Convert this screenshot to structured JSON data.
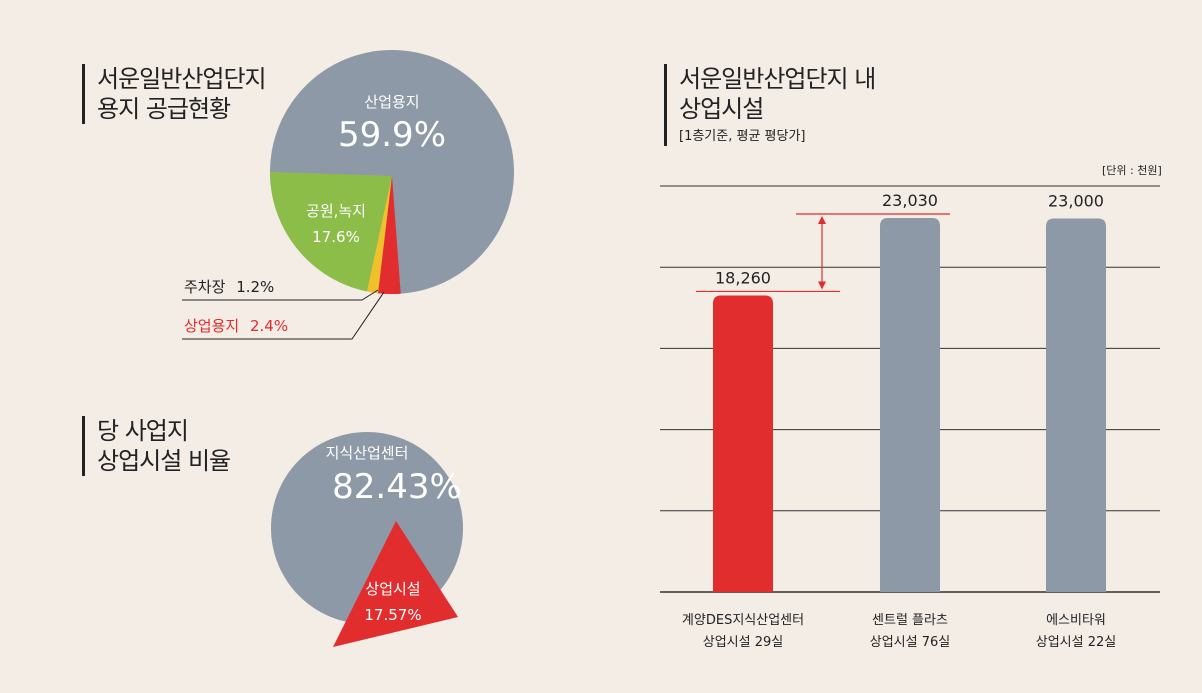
{
  "land_supply": {
    "title_line1": "서운일반산업단지",
    "title_line2": "용지 공급현황"
  },
  "facility_ratio": {
    "title_line1": "당 사업지",
    "title_line2": "상업시설 비율"
  },
  "price_compare": {
    "title_line1": "서운일반산업단지 내",
    "title_line2": "상업시설",
    "subtitle": "[1층기준, 평균 평당가]",
    "unit": "[단위 : 천원]"
  },
  "colors": {
    "gray": "#8d99a6",
    "green": "#8cbd49",
    "yellow": "#f0c12a",
    "red": "#e22d2e",
    "background": "#f3ede6"
  },
  "chart_data": [
    {
      "type": "pie",
      "slices": [
        {
          "label": "산업용지",
          "value": 59.9,
          "display": "59.9%"
        },
        {
          "label": "공원,녹지",
          "value": 17.6,
          "display": "17.6%"
        },
        {
          "label": "주차장",
          "value": 1.2,
          "display": "1.2%"
        },
        {
          "label": "상업용지",
          "value": 2.4,
          "display": "2.4%"
        }
      ]
    },
    {
      "type": "pie",
      "slices": [
        {
          "label": "지식산업센터",
          "value": 82.43,
          "display": "82.43%"
        },
        {
          "label": "상업시설",
          "value": 17.57,
          "display": "17.57%"
        }
      ]
    },
    {
      "type": "bar",
      "categories": [
        {
          "line1": "계양DES지식산업센터",
          "line2": "상업시설 29실"
        },
        {
          "line1": "센트럴 플라츠",
          "line2": "상업시설 76실"
        },
        {
          "line1": "에스비타워",
          "line2": "상업시설 22실"
        }
      ],
      "values": [
        18260,
        23030,
        23000
      ],
      "value_labels": [
        "18,260",
        "23,030",
        "23,000"
      ],
      "ylim": [
        0,
        25000
      ],
      "grid": true
    }
  ]
}
